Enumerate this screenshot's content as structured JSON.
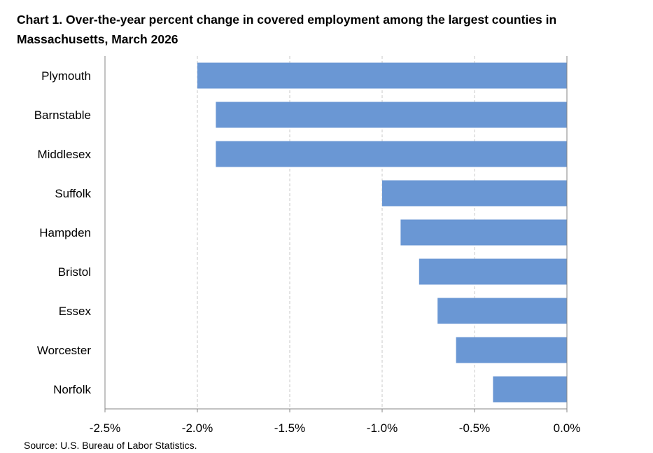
{
  "title": "Chart 1. Over-the-year percent change in covered employment among the largest counties in Massachusetts, March 2026",
  "source": "Source: U.S. Bureau of Labor Statistics.",
  "chart_data": {
    "type": "bar",
    "orientation": "horizontal",
    "title": "Chart 1. Over-the-year percent change in covered employment among the largest counties in Massachusetts, March 2026",
    "xlabel": "",
    "ylabel": "",
    "categories": [
      "Plymouth",
      "Barnstable",
      "Middlesex",
      "Suffolk",
      "Hampden",
      "Bristol",
      "Essex",
      "Worcester",
      "Norfolk"
    ],
    "values": [
      -2.0,
      -1.9,
      -1.9,
      -1.0,
      -0.9,
      -0.8,
      -0.7,
      -0.6,
      -0.4
    ],
    "xlim": [
      -2.5,
      0.0
    ],
    "xticks": [
      -2.5,
      -2.0,
      -1.5,
      -1.0,
      -0.5,
      0.0
    ],
    "xtick_labels": [
      "-2.5%",
      "-2.0%",
      "-1.5%",
      "-1.0%",
      "-0.5%",
      "0.0%"
    ],
    "grid": "vertical dashed",
    "legend": "none",
    "bar_color": "#6A97D4",
    "grid_color": "#C8C8C8",
    "axis_color": "#868686"
  }
}
